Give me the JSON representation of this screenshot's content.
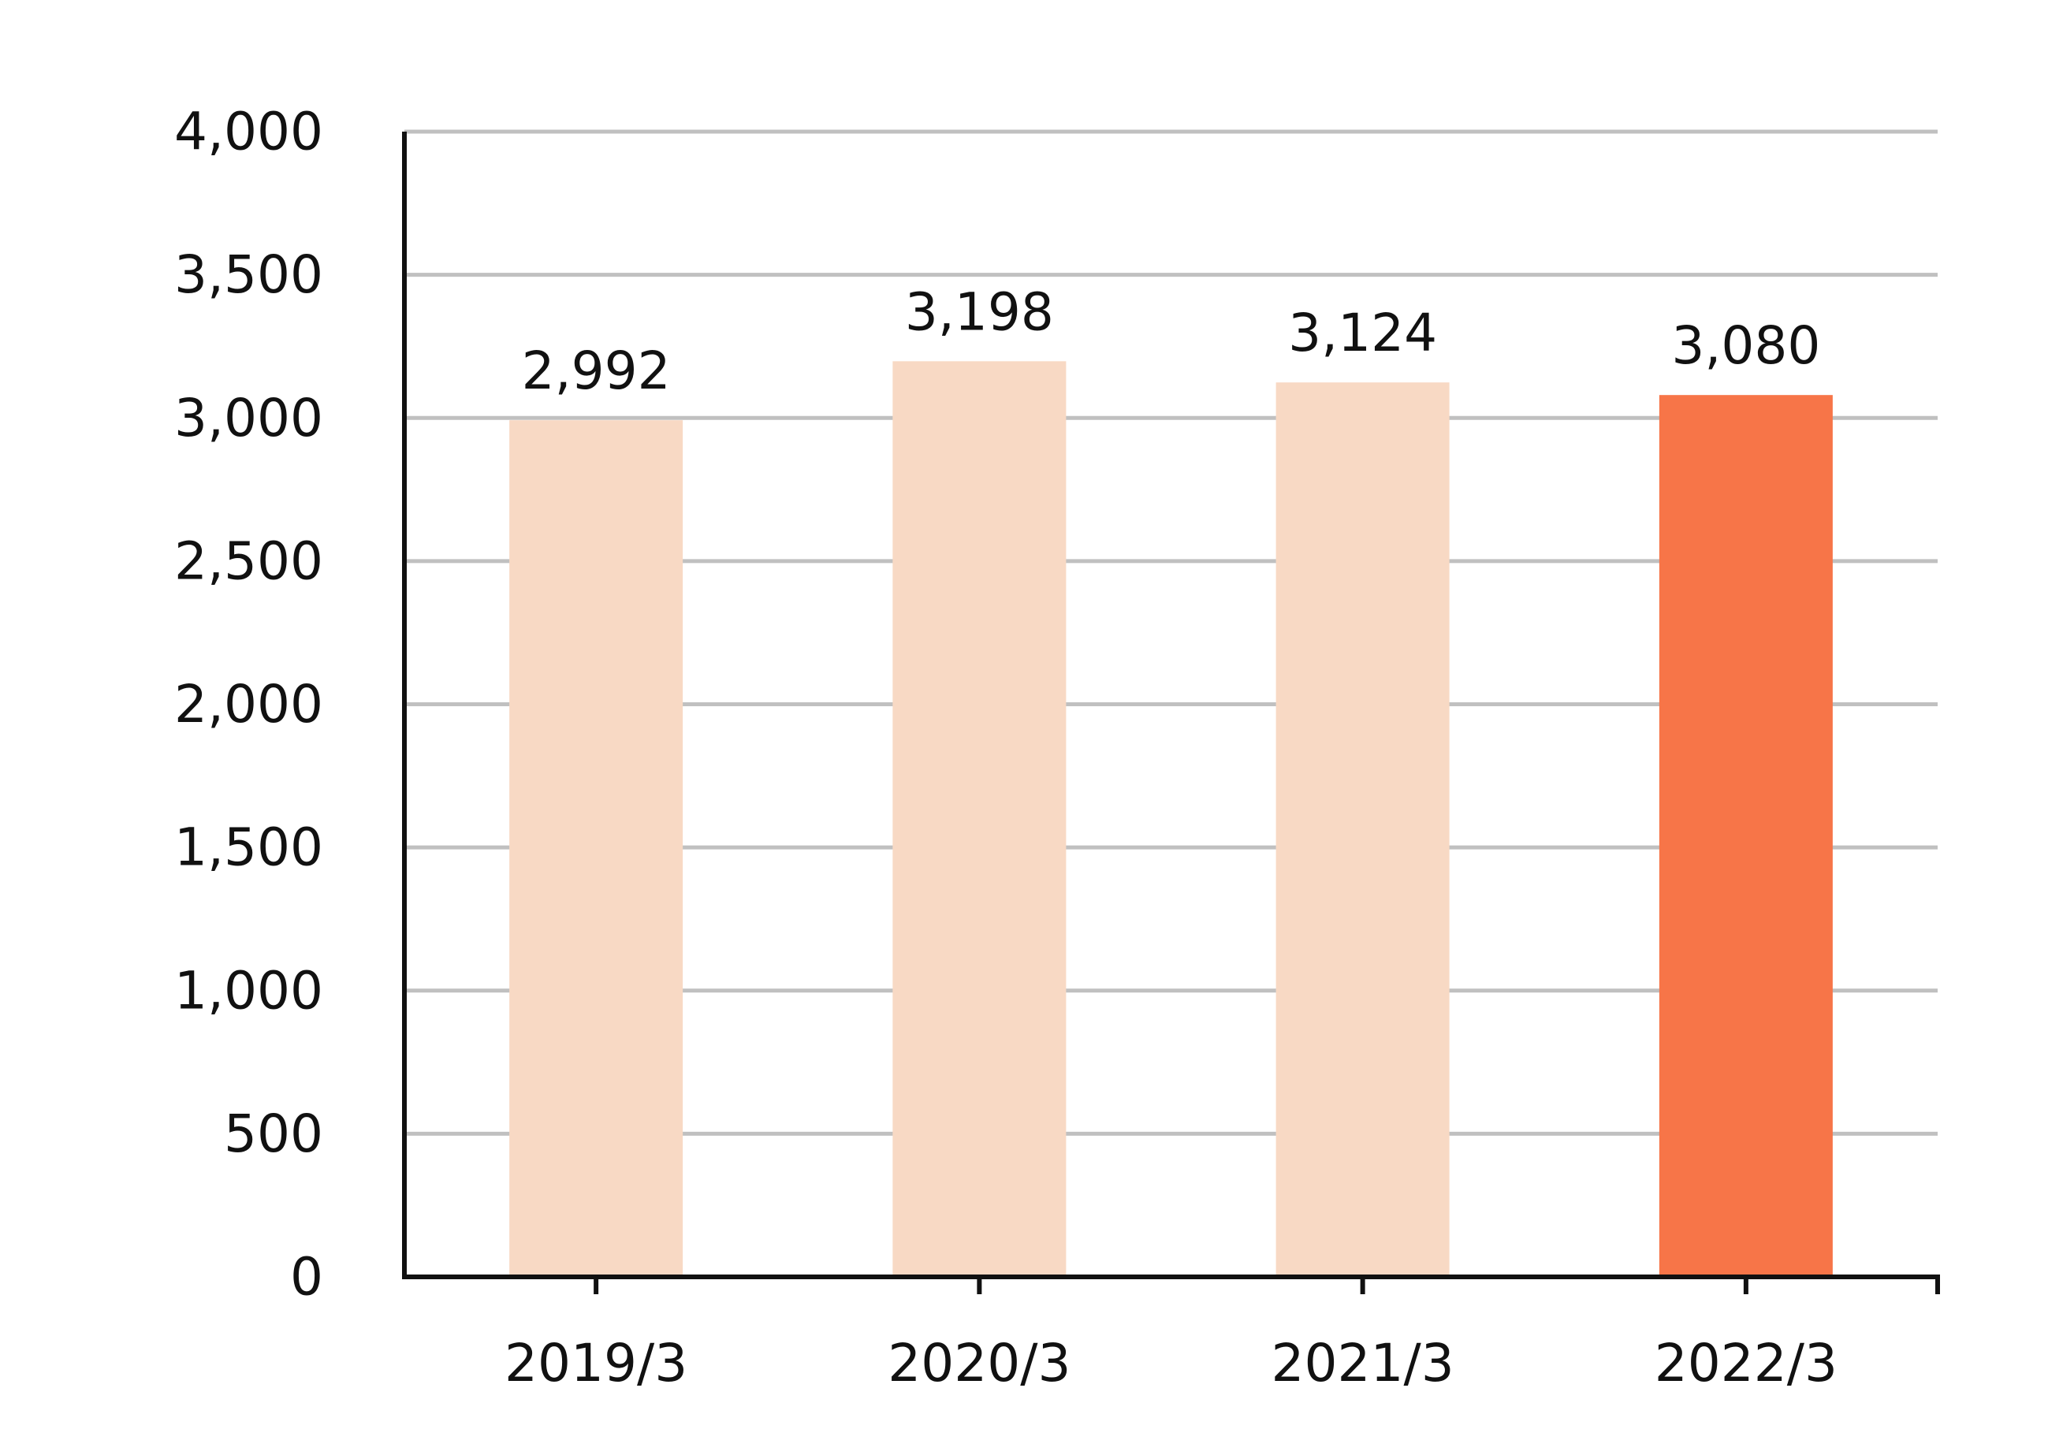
{
  "chart_data": {
    "type": "bar",
    "title": "",
    "xlabel": "",
    "ylabel": "",
    "categories": [
      "2019/3",
      "2020/3",
      "2021/3",
      "2022/3"
    ],
    "values": [
      2992,
      3198,
      3124,
      3080
    ],
    "value_labels": [
      "2,992",
      "3,198",
      "3,124",
      "3,080"
    ],
    "ylim": [
      0,
      4000
    ],
    "yticks": [
      0,
      500,
      1000,
      1500,
      2000,
      2500,
      3000,
      3500,
      4000
    ],
    "ytick_labels": [
      "0",
      "500",
      "1,000",
      "1,500",
      "2,000",
      "2,500",
      "3,000",
      "3,500",
      "4,000"
    ],
    "grid": true,
    "legend": "none",
    "colors": {
      "bar_default": "#f8d9c4",
      "bar_highlight": "#f77548",
      "grid": "#c0c0c0",
      "axis": "#111111"
    },
    "highlight_index": 3
  }
}
